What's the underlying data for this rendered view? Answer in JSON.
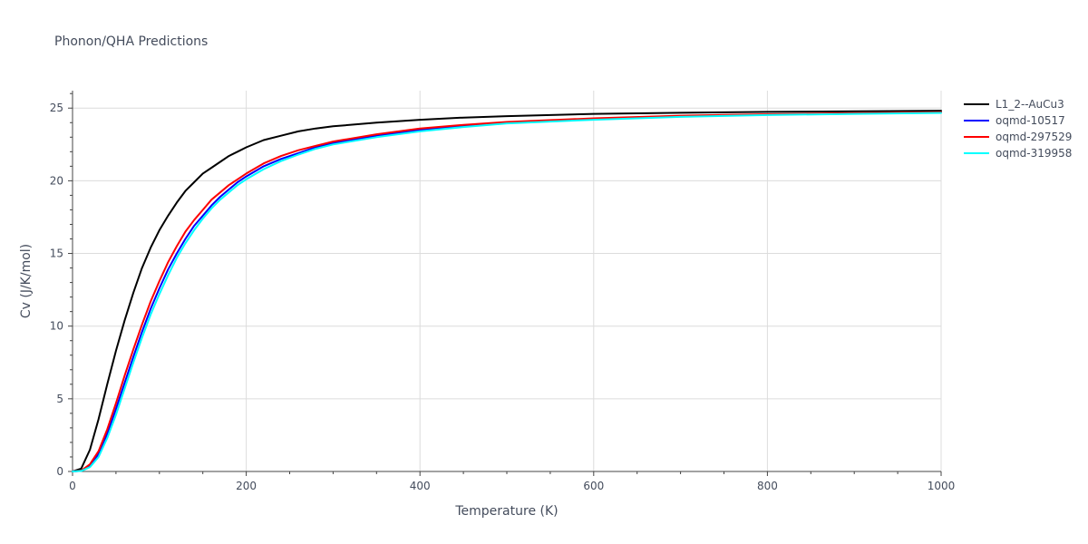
{
  "chart_data": {
    "type": "line",
    "title": "Phonon/QHA Predictions",
    "xlabel": "Temperature (K)",
    "ylabel": "Cv (J/K/mol)",
    "xlim": [
      0,
      1000
    ],
    "ylim": [
      0,
      26.2
    ],
    "x_ticks": [
      0,
      200,
      400,
      600,
      800,
      1000
    ],
    "y_ticks": [
      0,
      5,
      10,
      15,
      20,
      25
    ],
    "grid": true,
    "legend_position": "top-right",
    "series": [
      {
        "name": "L1_2--AuCu3",
        "color": "#000000",
        "x": [
          0,
          10,
          20,
          30,
          40,
          50,
          60,
          70,
          80,
          90,
          100,
          110,
          120,
          130,
          140,
          150,
          160,
          170,
          180,
          190,
          200,
          220,
          240,
          260,
          280,
          300,
          350,
          400,
          450,
          500,
          600,
          700,
          800,
          900,
          1000
        ],
        "y": [
          0,
          0.2,
          1.5,
          3.6,
          6.0,
          8.3,
          10.4,
          12.3,
          14.0,
          15.4,
          16.6,
          17.6,
          18.5,
          19.3,
          19.9,
          20.5,
          20.9,
          21.3,
          21.7,
          22.0,
          22.3,
          22.8,
          23.1,
          23.4,
          23.6,
          23.75,
          24.0,
          24.2,
          24.35,
          24.45,
          24.6,
          24.68,
          24.74,
          24.78,
          24.82
        ]
      },
      {
        "name": "oqmd-10517",
        "color": "#0000ff",
        "x": [
          0,
          10,
          20,
          30,
          40,
          50,
          60,
          70,
          80,
          90,
          100,
          110,
          120,
          130,
          140,
          150,
          160,
          170,
          180,
          190,
          200,
          220,
          240,
          260,
          280,
          300,
          350,
          400,
          450,
          500,
          600,
          700,
          800,
          900,
          1000
        ],
        "y": [
          0,
          0.05,
          0.4,
          1.2,
          2.6,
          4.3,
          6.1,
          7.9,
          9.6,
          11.2,
          12.6,
          13.9,
          15.0,
          16.0,
          16.9,
          17.6,
          18.3,
          18.9,
          19.4,
          19.9,
          20.3,
          21.0,
          21.5,
          21.9,
          22.3,
          22.6,
          23.1,
          23.5,
          23.8,
          24.0,
          24.25,
          24.45,
          24.55,
          24.63,
          24.7
        ]
      },
      {
        "name": "oqmd-297529",
        "color": "#ff0000",
        "x": [
          0,
          10,
          20,
          30,
          40,
          50,
          60,
          70,
          80,
          90,
          100,
          110,
          120,
          130,
          140,
          150,
          160,
          170,
          180,
          190,
          200,
          220,
          240,
          260,
          280,
          300,
          350,
          400,
          450,
          500,
          600,
          700,
          800,
          900,
          1000
        ],
        "y": [
          0,
          0.06,
          0.5,
          1.4,
          2.9,
          4.7,
          6.6,
          8.4,
          10.1,
          11.7,
          13.1,
          14.4,
          15.5,
          16.5,
          17.3,
          18.0,
          18.7,
          19.2,
          19.7,
          20.1,
          20.5,
          21.2,
          21.7,
          22.1,
          22.4,
          22.7,
          23.2,
          23.6,
          23.85,
          24.05,
          24.3,
          24.48,
          24.58,
          24.65,
          24.72
        ]
      },
      {
        "name": "oqmd-319958",
        "color": "#00ffff",
        "x": [
          0,
          10,
          20,
          30,
          40,
          50,
          60,
          70,
          80,
          90,
          100,
          110,
          120,
          130,
          140,
          150,
          160,
          170,
          180,
          190,
          200,
          220,
          240,
          260,
          280,
          300,
          350,
          400,
          450,
          500,
          600,
          700,
          800,
          900,
          1000
        ],
        "y": [
          0,
          0.04,
          0.3,
          1.0,
          2.3,
          3.9,
          5.7,
          7.5,
          9.2,
          10.8,
          12.2,
          13.5,
          14.7,
          15.7,
          16.6,
          17.4,
          18.1,
          18.7,
          19.2,
          19.7,
          20.1,
          20.8,
          21.35,
          21.8,
          22.2,
          22.5,
          23.0,
          23.4,
          23.7,
          23.95,
          24.2,
          24.4,
          24.52,
          24.6,
          24.67
        ]
      }
    ]
  }
}
